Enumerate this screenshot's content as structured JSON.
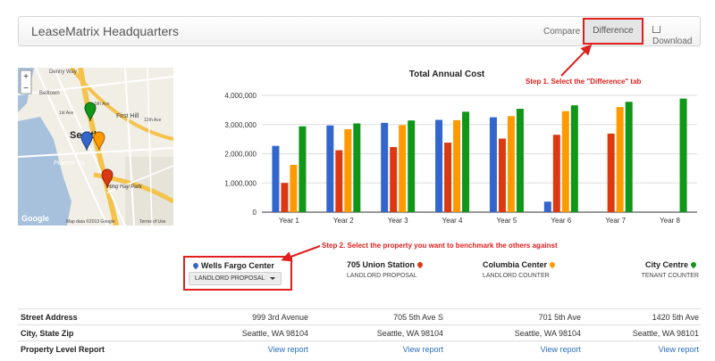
{
  "header": {
    "title": "LeaseMatrix Headquarters",
    "nav": {
      "compare": "Compare",
      "difference": "Difference",
      "download": "Download"
    }
  },
  "annotations": {
    "step1": "Step 1. Select the \"Difference\" tab",
    "step2": "Step 2. Select the property you want to benchmark the others against"
  },
  "map": {
    "labels": [
      "Denny Way",
      "Belltown",
      "1st Ave",
      "5th Ave",
      "First Hill",
      "12th Ave",
      "Seattle",
      "Pioneer Sq",
      "Hing Hay Park",
      "Google",
      "Map data ©2013 Google",
      "Terms of Use"
    ],
    "zoom_in": "+",
    "zoom_out": "−"
  },
  "chart_data": {
    "type": "bar",
    "title": "Total Annual Cost",
    "categories": [
      "Year 1",
      "Year 2",
      "Year 3",
      "Year 4",
      "Year 5",
      "Year 6",
      "Year 7",
      "Year 8"
    ],
    "ylim": [
      0,
      4000000
    ],
    "yticks": [
      "0",
      "1,000,000",
      "2,000,000",
      "3,000,000",
      "4,000,000"
    ],
    "grid": true,
    "series": [
      {
        "color": "#3366cc",
        "values": [
          2270000,
          2970000,
          3060000,
          3160000,
          3250000,
          360000,
          null,
          null
        ]
      },
      {
        "color": "#dc3912",
        "values": [
          1000000,
          2120000,
          2230000,
          2380000,
          2520000,
          2650000,
          2690000,
          null
        ]
      },
      {
        "color": "#ff9900",
        "values": [
          1620000,
          2840000,
          2980000,
          3150000,
          3290000,
          3460000,
          3600000,
          null
        ]
      },
      {
        "color": "#109618",
        "values": [
          2940000,
          3040000,
          3140000,
          3440000,
          3540000,
          3660000,
          3780000,
          3890000
        ]
      }
    ]
  },
  "properties": [
    {
      "name": "Wells Fargo Center",
      "status": "LANDLORD PROPOSAL",
      "pin_color": "#3366cc",
      "address": "999 3rd Avenue",
      "city": "Seattle, WA 98104",
      "report": "View report"
    },
    {
      "name": "705 Union Station",
      "status": "LANDLORD PROPOSAL",
      "pin_color": "#dc3912",
      "address": "705 5th Ave S",
      "city": "Seattle, WA 98104",
      "report": "View report"
    },
    {
      "name": "Columbia Center",
      "status": "LANDLORD COUNTER",
      "pin_color": "#ff9900",
      "address": "701 5th Ave",
      "city": "Seattle, WA 98104",
      "report": "View report"
    },
    {
      "name": "City Centre",
      "status": "TENANT COUNTER",
      "pin_color": "#109618",
      "address": "1420 5th Ave",
      "city": "Seattle, WA 98101",
      "report": "View report"
    }
  ],
  "table": {
    "labels": {
      "address": "Street Address",
      "city": "City, State Zip",
      "report": "Property Level Report"
    }
  }
}
